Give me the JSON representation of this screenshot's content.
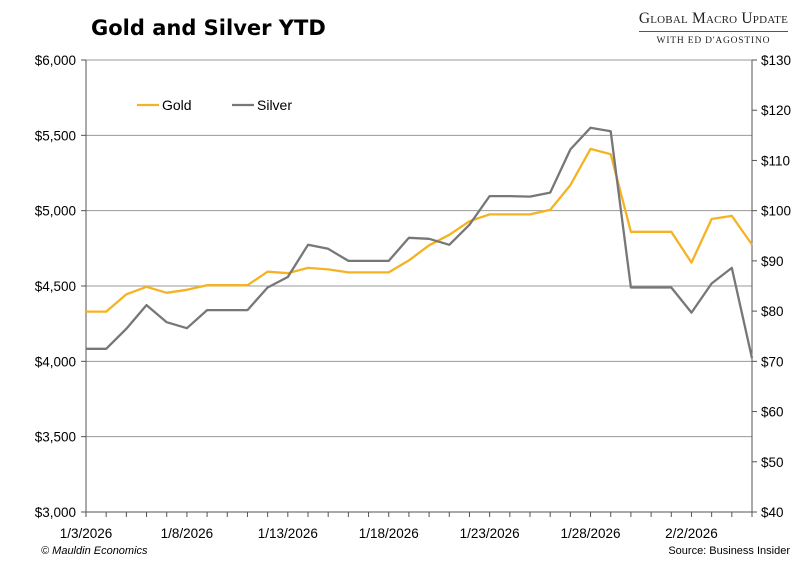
{
  "chart_data": {
    "type": "line",
    "title": "Gold and Silver YTD",
    "x": [
      "1/3/2026",
      "1/4/2026",
      "1/5/2026",
      "1/6/2026",
      "1/7/2026",
      "1/8/2026",
      "1/9/2026",
      "1/10/2026",
      "1/11/2026",
      "1/12/2026",
      "1/13/2026",
      "1/14/2026",
      "1/15/2026",
      "1/16/2026",
      "1/17/2026",
      "1/18/2026",
      "1/19/2026",
      "1/20/2026",
      "1/21/2026",
      "1/22/2026",
      "1/23/2026",
      "1/24/2026",
      "1/25/2026",
      "1/26/2026",
      "1/27/2026",
      "1/28/2026",
      "1/29/2026",
      "1/30/2026",
      "1/31/2026",
      "2/1/2026",
      "2/2/2026",
      "2/3/2026",
      "2/4/2026",
      "2/5/2026"
    ],
    "x_tick_labels": [
      "1/3/2026",
      "1/8/2026",
      "1/13/2026",
      "1/18/2026",
      "1/23/2026",
      "1/28/2026",
      "2/2/2026"
    ],
    "series": [
      {
        "name": "Gold",
        "axis": "left",
        "color": "#f5b323",
        "values": [
          4330,
          4330,
          4445,
          4495,
          4455,
          4475,
          4505,
          4505,
          4505,
          4595,
          4585,
          4620,
          4610,
          4590,
          4590,
          4590,
          4670,
          4770,
          4840,
          4930,
          4975,
          4975,
          4975,
          5005,
          5170,
          5410,
          5375,
          4860,
          4860,
          4860,
          4655,
          4945,
          4965,
          4775
        ]
      },
      {
        "name": "Silver",
        "axis": "right",
        "color": "#777777",
        "values": [
          72.5,
          72.5,
          76.5,
          81.2,
          77.8,
          76.6,
          80.2,
          80.2,
          80.2,
          84.7,
          86.8,
          93.2,
          92.4,
          90.0,
          90.0,
          90.0,
          94.6,
          94.4,
          93.2,
          97.2,
          102.9,
          102.9,
          102.8,
          103.6,
          112.2,
          116.5,
          115.8,
          84.7,
          84.7,
          84.7,
          79.7,
          85.5,
          88.6,
          70.6
        ]
      }
    ],
    "y_left": {
      "ylim": [
        3000,
        6000
      ],
      "ticks": [
        "$3,000",
        "$3,500",
        "$4,000",
        "$4,500",
        "$5,000",
        "$5,500",
        "$6,000"
      ]
    },
    "y_right": {
      "ylim": [
        40,
        130
      ],
      "ticks": [
        "$40",
        "$50",
        "$60",
        "$70",
        "$80",
        "$90",
        "$100",
        "$110",
        "$120",
        "$130"
      ]
    },
    "grid": true,
    "legend": "top-left"
  },
  "brand": {
    "name": "Global Macro Update",
    "subtitle": "with Ed D'Agostino"
  },
  "footer": {
    "copyright": "© Mauldin Economics",
    "source": "Source: Business Insider"
  }
}
